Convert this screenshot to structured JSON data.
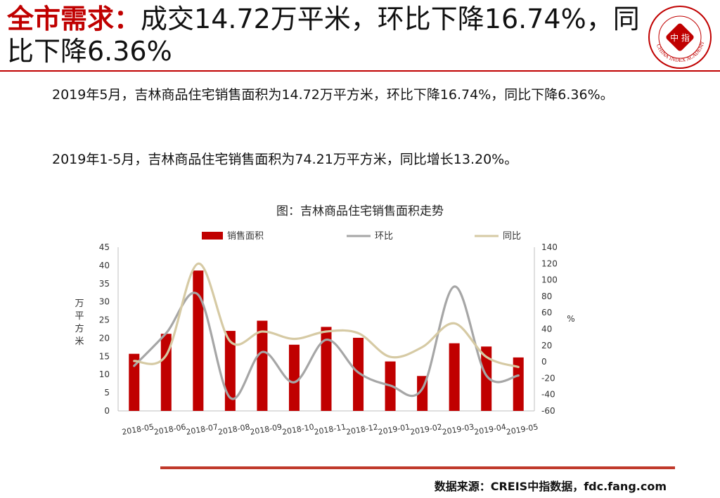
{
  "header": {
    "title_highlight": "全市需求：",
    "title_rest": "成交14.72万平米，环比下降16.74%，同比下降6.36%"
  },
  "logo": {
    "center_text": "中 指",
    "ring_text": "CHINA INDEX ACADEMY",
    "color": "#c00000"
  },
  "body": {
    "paragraph1": "2019年5月，吉林商品住宅销售面积为14.72万平方米，环比下降16.74%，同比下降6.36%。",
    "paragraph2": "2019年1-5月，吉林商品住宅销售面积为74.21万平方米，同比增长13.20%。"
  },
  "chart_title": "图：吉林商品住宅销售面积走势",
  "footer": {
    "source": "数据来源：CREIS中指数据，fdc.fang.com"
  },
  "colors": {
    "accent": "#c00000",
    "bar": "#c00000",
    "mom_line": "#a6a6a6",
    "yoy_line": "#d6caa4"
  },
  "chart_data": {
    "type": "bar",
    "categories": [
      "2018-05",
      "2018-06",
      "2018-07",
      "2018-08",
      "2018-09",
      "2018-10",
      "2018-11",
      "2018-12",
      "2019-01",
      "2019-02",
      "2019-03",
      "2019-04",
      "2019-05"
    ],
    "series": [
      {
        "name": "销售面积",
        "type": "bar",
        "axis": "left",
        "values": [
          15.7,
          21.2,
          38.6,
          22.0,
          24.8,
          18.2,
          23.1,
          20.1,
          13.6,
          9.6,
          18.6,
          17.7,
          14.7
        ]
      },
      {
        "name": "环比",
        "type": "line",
        "axis": "right",
        "values": [
          -5,
          35,
          82,
          -44,
          12,
          -25,
          27,
          -13,
          -29,
          -33,
          92,
          -16.74,
          -16.74
        ]
      },
      {
        "name": "同比",
        "type": "line",
        "axis": "right",
        "values": [
          1,
          8,
          120,
          25,
          37,
          28,
          37,
          35,
          6,
          18,
          47,
          6,
          -6.36
        ]
      }
    ],
    "ylabel": "万平方米",
    "y2label": "%",
    "ylim": [
      0,
      45
    ],
    "y2lim": [
      -60,
      140
    ],
    "yticks": [
      0,
      5,
      10,
      15,
      20,
      25,
      30,
      35,
      40,
      45
    ],
    "y2ticks": [
      -60,
      -40,
      -20,
      0,
      20,
      40,
      60,
      80,
      100,
      120,
      140
    ],
    "legend_position": "top"
  }
}
